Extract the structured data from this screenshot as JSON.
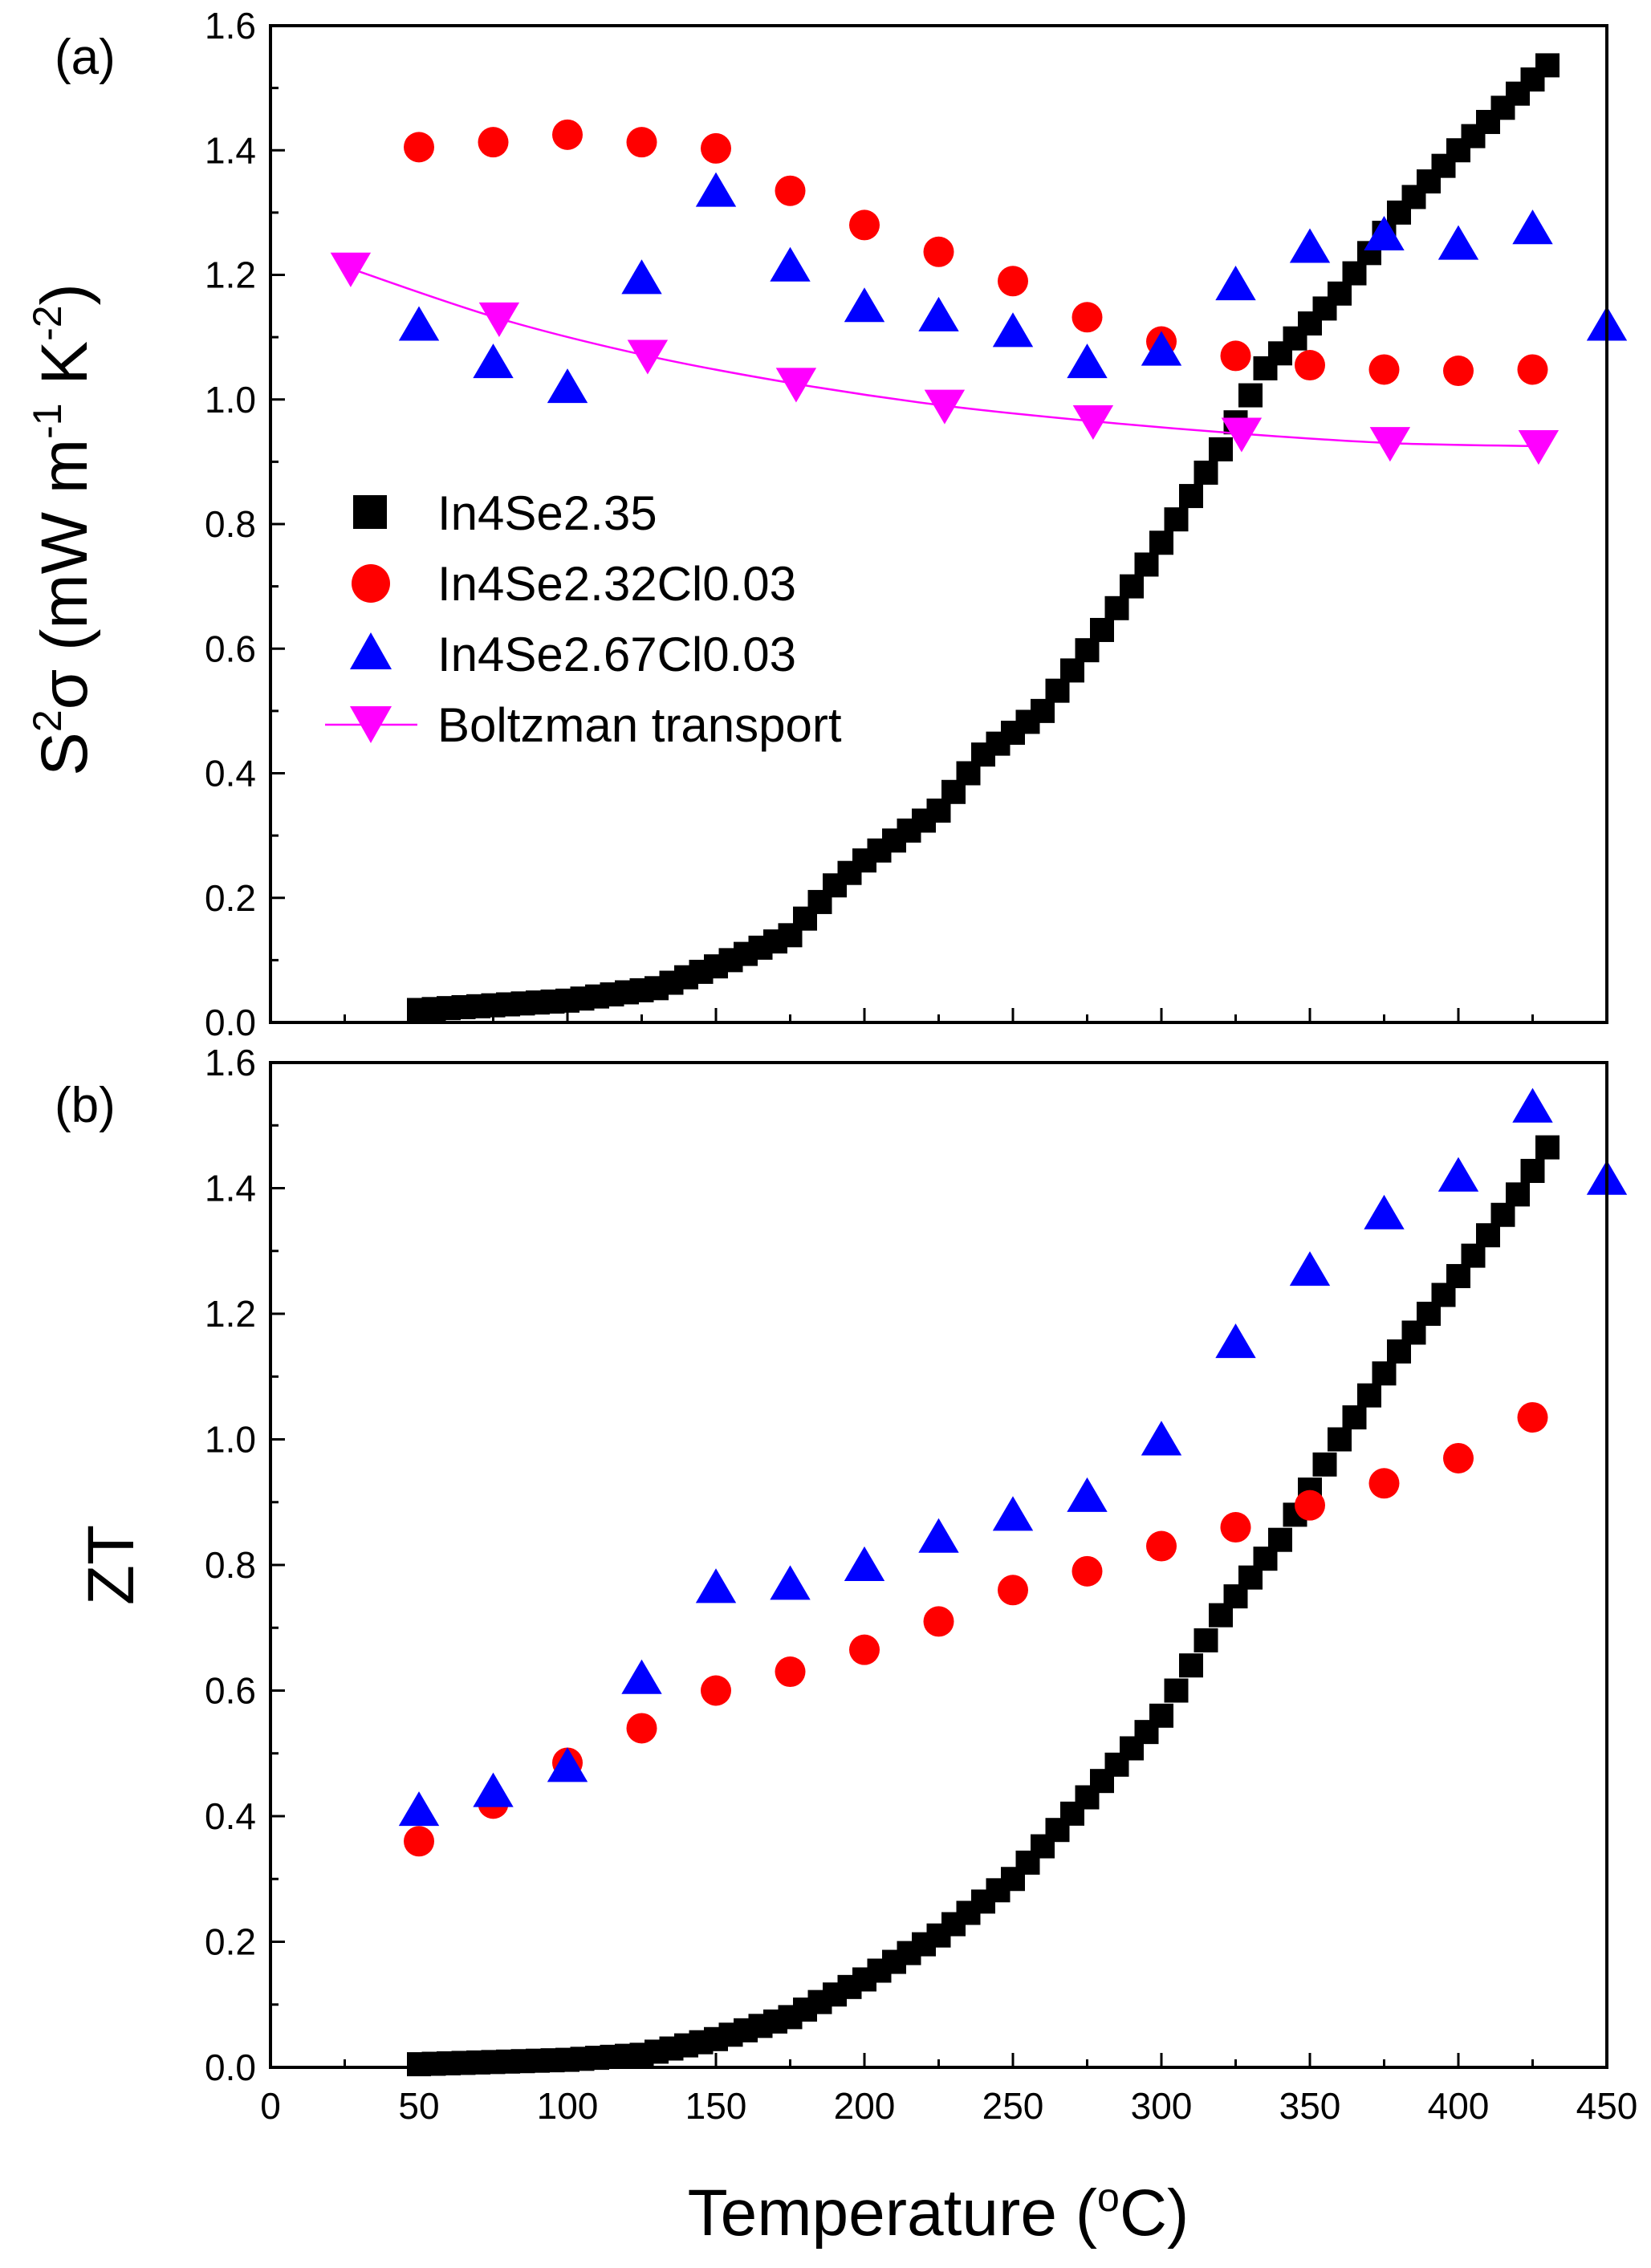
{
  "chart_data": [
    {
      "type": "scatter",
      "panel_label": "(a)",
      "ylabel": {
        "base": "S",
        "exp1": "2",
        "sigma": "σ",
        "open": " (mW m",
        "exp2": "-1",
        "mid": " K",
        "exp3": "-2",
        "close": ")"
      },
      "xlim": [
        0,
        450
      ],
      "ylim": [
        0,
        1.6
      ],
      "xticks": [
        0,
        50,
        100,
        150,
        200,
        250,
        300,
        350,
        400,
        450
      ],
      "yticks": [
        "0.0",
        "0.2",
        "0.4",
        "0.6",
        "0.8",
        "1.0",
        "1.2",
        "1.4",
        "1.6"
      ],
      "legend_position": "center-left",
      "series": [
        {
          "name": "In4Se2.35",
          "marker": "square",
          "color": "#000000",
          "anchors": [
            [
              50,
              0.02
            ],
            [
              100,
              0.035
            ],
            [
              130,
              0.055
            ],
            [
              150,
              0.09
            ],
            [
              175,
              0.14
            ],
            [
              190,
              0.22
            ],
            [
              200,
              0.26
            ],
            [
              225,
              0.34
            ],
            [
              240,
              0.43
            ],
            [
              260,
              0.5
            ],
            [
              280,
              0.63
            ],
            [
              300,
              0.77
            ],
            [
              320,
              0.92
            ],
            [
              335,
              1.05
            ],
            [
              360,
              1.17
            ],
            [
              380,
              1.3
            ],
            [
              400,
              1.4
            ],
            [
              433,
              1.55
            ]
          ],
          "step": 5
        },
        {
          "name": "In4Se2.32Cl0.03",
          "marker": "circle",
          "color": "#ff0000",
          "x": [
            50,
            75,
            100,
            125,
            150,
            175,
            200,
            225,
            250,
            275,
            300,
            325,
            350,
            375,
            400,
            425
          ],
          "y": [
            1.405,
            1.413,
            1.425,
            1.413,
            1.403,
            1.335,
            1.28,
            1.237,
            1.19,
            1.132,
            1.093,
            1.07,
            1.055,
            1.048,
            1.046,
            1.048
          ]
        },
        {
          "name": "In4Se2.67Cl0.03",
          "marker": "triangle-up",
          "color": "#0000ff",
          "x": [
            50,
            75,
            100,
            125,
            150,
            175,
            200,
            225,
            250,
            275,
            300,
            325,
            350,
            375,
            400,
            425,
            450
          ],
          "y": [
            1.12,
            1.06,
            1.02,
            1.195,
            1.335,
            1.215,
            1.15,
            1.135,
            1.11,
            1.06,
            1.08,
            1.185,
            1.245,
            1.265,
            1.25,
            1.275,
            1.12
          ]
        },
        {
          "name": "Boltzman transport",
          "marker": "triangle-down",
          "color": "#ff00ff",
          "line": true,
          "x": [
            27,
            77,
            127,
            177,
            227,
            277,
            327,
            377,
            427
          ],
          "y": [
            1.21,
            1.13,
            1.07,
            1.025,
            0.99,
            0.965,
            0.945,
            0.93,
            0.925
          ]
        }
      ]
    },
    {
      "type": "scatter",
      "panel_label": "(b)",
      "ylabel": {
        "text": "ZT"
      },
      "xlabel": {
        "text": "Temperature (",
        "sup": "o",
        "unit": "C)"
      },
      "xlim": [
        0,
        450
      ],
      "ylim": [
        0,
        1.6
      ],
      "xticks": [
        0,
        50,
        100,
        150,
        200,
        250,
        300,
        350,
        400,
        450
      ],
      "yticks": [
        "0.0",
        "0.2",
        "0.4",
        "0.6",
        "0.8",
        "1.0",
        "1.2",
        "1.4",
        "1.6"
      ],
      "series": [
        {
          "name": "In4Se2.35",
          "marker": "square",
          "color": "#000000",
          "anchors": [
            [
              50,
              0.005
            ],
            [
              100,
              0.012
            ],
            [
              125,
              0.02
            ],
            [
              150,
              0.045
            ],
            [
              175,
              0.08
            ],
            [
              200,
              0.14
            ],
            [
              225,
              0.21
            ],
            [
              250,
              0.3
            ],
            [
              275,
              0.43
            ],
            [
              300,
              0.56
            ],
            [
              320,
              0.72
            ],
            [
              340,
              0.84
            ],
            [
              360,
              1.0
            ],
            [
              380,
              1.14
            ],
            [
              400,
              1.26
            ],
            [
              420,
              1.39
            ],
            [
              432,
              1.48
            ]
          ],
          "step": 5
        },
        {
          "name": "In4Se2.32Cl0.03",
          "marker": "circle",
          "color": "#ff0000",
          "x": [
            50,
            75,
            100,
            125,
            150,
            175,
            200,
            225,
            250,
            275,
            300,
            325,
            350,
            375,
            400,
            425
          ],
          "y": [
            0.36,
            0.42,
            0.485,
            0.54,
            0.6,
            0.63,
            0.665,
            0.71,
            0.76,
            0.79,
            0.83,
            0.86,
            0.895,
            0.93,
            0.97,
            1.035
          ]
        },
        {
          "name": "In4Se2.67Cl0.03",
          "marker": "triangle-up",
          "color": "#0000ff",
          "x": [
            50,
            75,
            100,
            125,
            150,
            175,
            200,
            225,
            250,
            275,
            300,
            325,
            350,
            375,
            400,
            425,
            450
          ],
          "y": [
            0.41,
            0.44,
            0.48,
            0.62,
            0.765,
            0.77,
            0.8,
            0.845,
            0.88,
            0.91,
            1.0,
            1.155,
            1.27,
            1.36,
            1.42,
            1.53,
            1.415
          ]
        }
      ]
    }
  ]
}
